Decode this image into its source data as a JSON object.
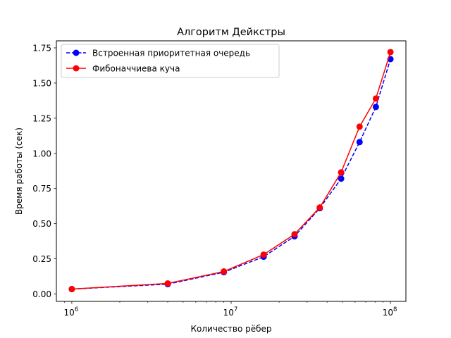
{
  "chart_data": {
    "type": "line",
    "title": "Алгоритм Дейкстры",
    "xlabel": "Количество рёбер",
    "ylabel": "Время работы (сек)",
    "xscale": "log",
    "xlim": [
      800000,
      125000000
    ],
    "ylim": [
      -0.0525,
      1.8
    ],
    "grid": false,
    "legend_position": "top-left",
    "x": [
      1000000,
      4000000,
      9000000,
      16000000,
      25000000,
      36000000,
      49000000,
      64000000,
      81000000,
      100000000
    ],
    "x_ticks": [
      1000000,
      10000000,
      100000000
    ],
    "x_tick_labels": [
      {
        "base": "10",
        "exp": "6"
      },
      {
        "base": "10",
        "exp": "7"
      },
      {
        "base": "10",
        "exp": "8"
      }
    ],
    "y_ticks": [
      0.0,
      0.25,
      0.5,
      0.75,
      1.0,
      1.25,
      1.5,
      1.75
    ],
    "y_tick_labels": [
      "0.00",
      "0.25",
      "0.50",
      "0.75",
      "1.00",
      "1.25",
      "1.50",
      "1.75"
    ],
    "series": [
      {
        "name": "Встроенная приоритетная очередь",
        "color": "#0000ff",
        "line_style": "dashed",
        "marker": "circle",
        "values": [
          0.035,
          0.07,
          0.155,
          0.265,
          0.41,
          0.61,
          0.82,
          1.08,
          1.33,
          1.67
        ]
      },
      {
        "name": "Фибоначчиева куча",
        "color": "#ff0000",
        "line_style": "solid",
        "marker": "circle",
        "values": [
          0.035,
          0.075,
          0.16,
          0.28,
          0.425,
          0.615,
          0.865,
          1.19,
          1.39,
          1.72
        ]
      }
    ]
  }
}
